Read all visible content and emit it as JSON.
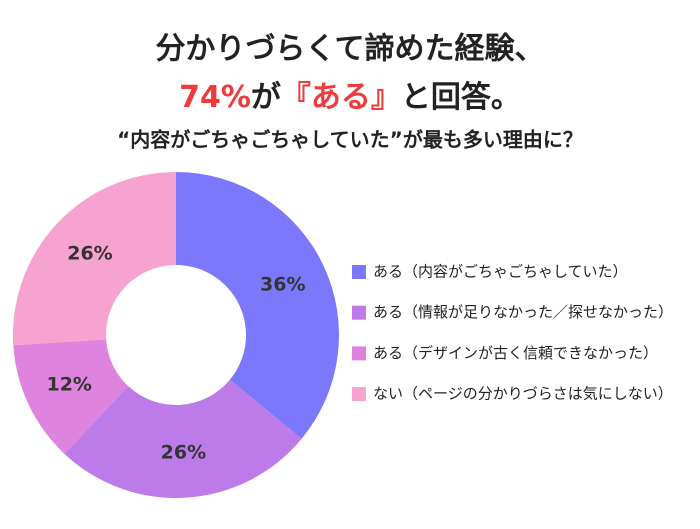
{
  "chart_data": {
    "type": "donut",
    "title": "分かりづらくて諦めた経験、",
    "headline": [
      {
        "text": "74%",
        "color": "#ee3b3b"
      },
      {
        "text": "が",
        "color": "#222222"
      },
      {
        "text": "『ある』",
        "color": "#ee3b3b"
      },
      {
        "text": "と回答。",
        "color": "#222222"
      }
    ],
    "subtitle": "“内容がごちゃごちゃしていた”が最も多い理由に？",
    "categories": [
      "ある（内容がごちゃごちゃしていた）",
      "ある（情報が足りなかった／探せなかった）",
      "ある（デザインが古く信頼できなかった）",
      "ない（ページの分かりづらさは気にしない）"
    ],
    "values": [
      36,
      26,
      12,
      26
    ],
    "value_labels": [
      "36%",
      "26%",
      "12%",
      "26%"
    ],
    "colors": [
      "#7b78fc",
      "#bd7be9",
      "#df84de",
      "#f6a3cf"
    ]
  }
}
